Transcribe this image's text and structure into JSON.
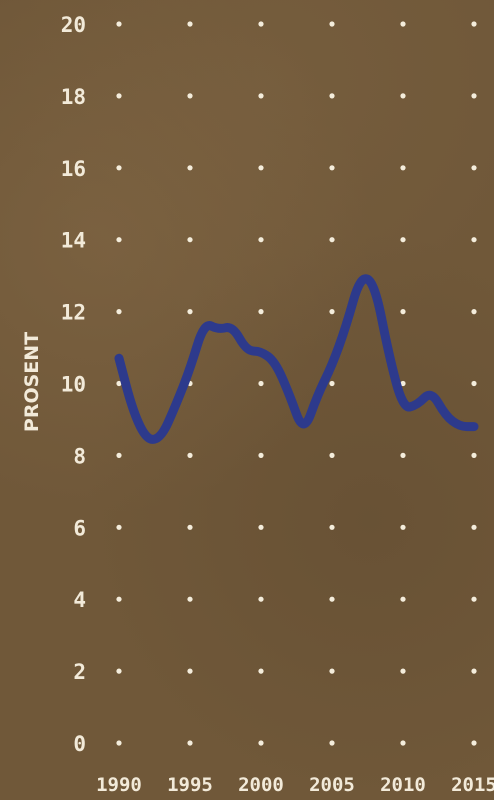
{
  "chart_data": {
    "type": "line",
    "ylabel": "PROSENT",
    "xlabel": "",
    "title": "",
    "ylim": [
      0,
      20
    ],
    "xlim": [
      1990,
      2015
    ],
    "yticks": [
      "0",
      "2",
      "4",
      "6",
      "8",
      "10",
      "12",
      "14",
      "16",
      "18",
      "20"
    ],
    "xticks": [
      "1990",
      "1995",
      "2000",
      "2005",
      "2010",
      "2015"
    ],
    "grid": "dots",
    "line_color": "#2d3a8c",
    "dot_color": "#f4eddc",
    "series": [
      {
        "x": [
          1990,
          1991,
          1992,
          1993,
          1994,
          1995,
          1996,
          1997,
          1998,
          1999,
          2000,
          2001,
          2002,
          2003,
          2004,
          2005,
          2006,
          2007,
          2008,
          2009,
          2010,
          2011,
          2012,
          2013,
          2014,
          2015
        ],
        "values": [
          10.7,
          9.2,
          8.4,
          8.5,
          9.4,
          10.4,
          11.7,
          11.5,
          11.6,
          10.9,
          10.9,
          10.6,
          9.7,
          8.6,
          9.7,
          10.5,
          11.6,
          13.0,
          12.8,
          10.8,
          9.3,
          9.4,
          9.8,
          9.1,
          8.8,
          8.8
        ]
      }
    ]
  }
}
